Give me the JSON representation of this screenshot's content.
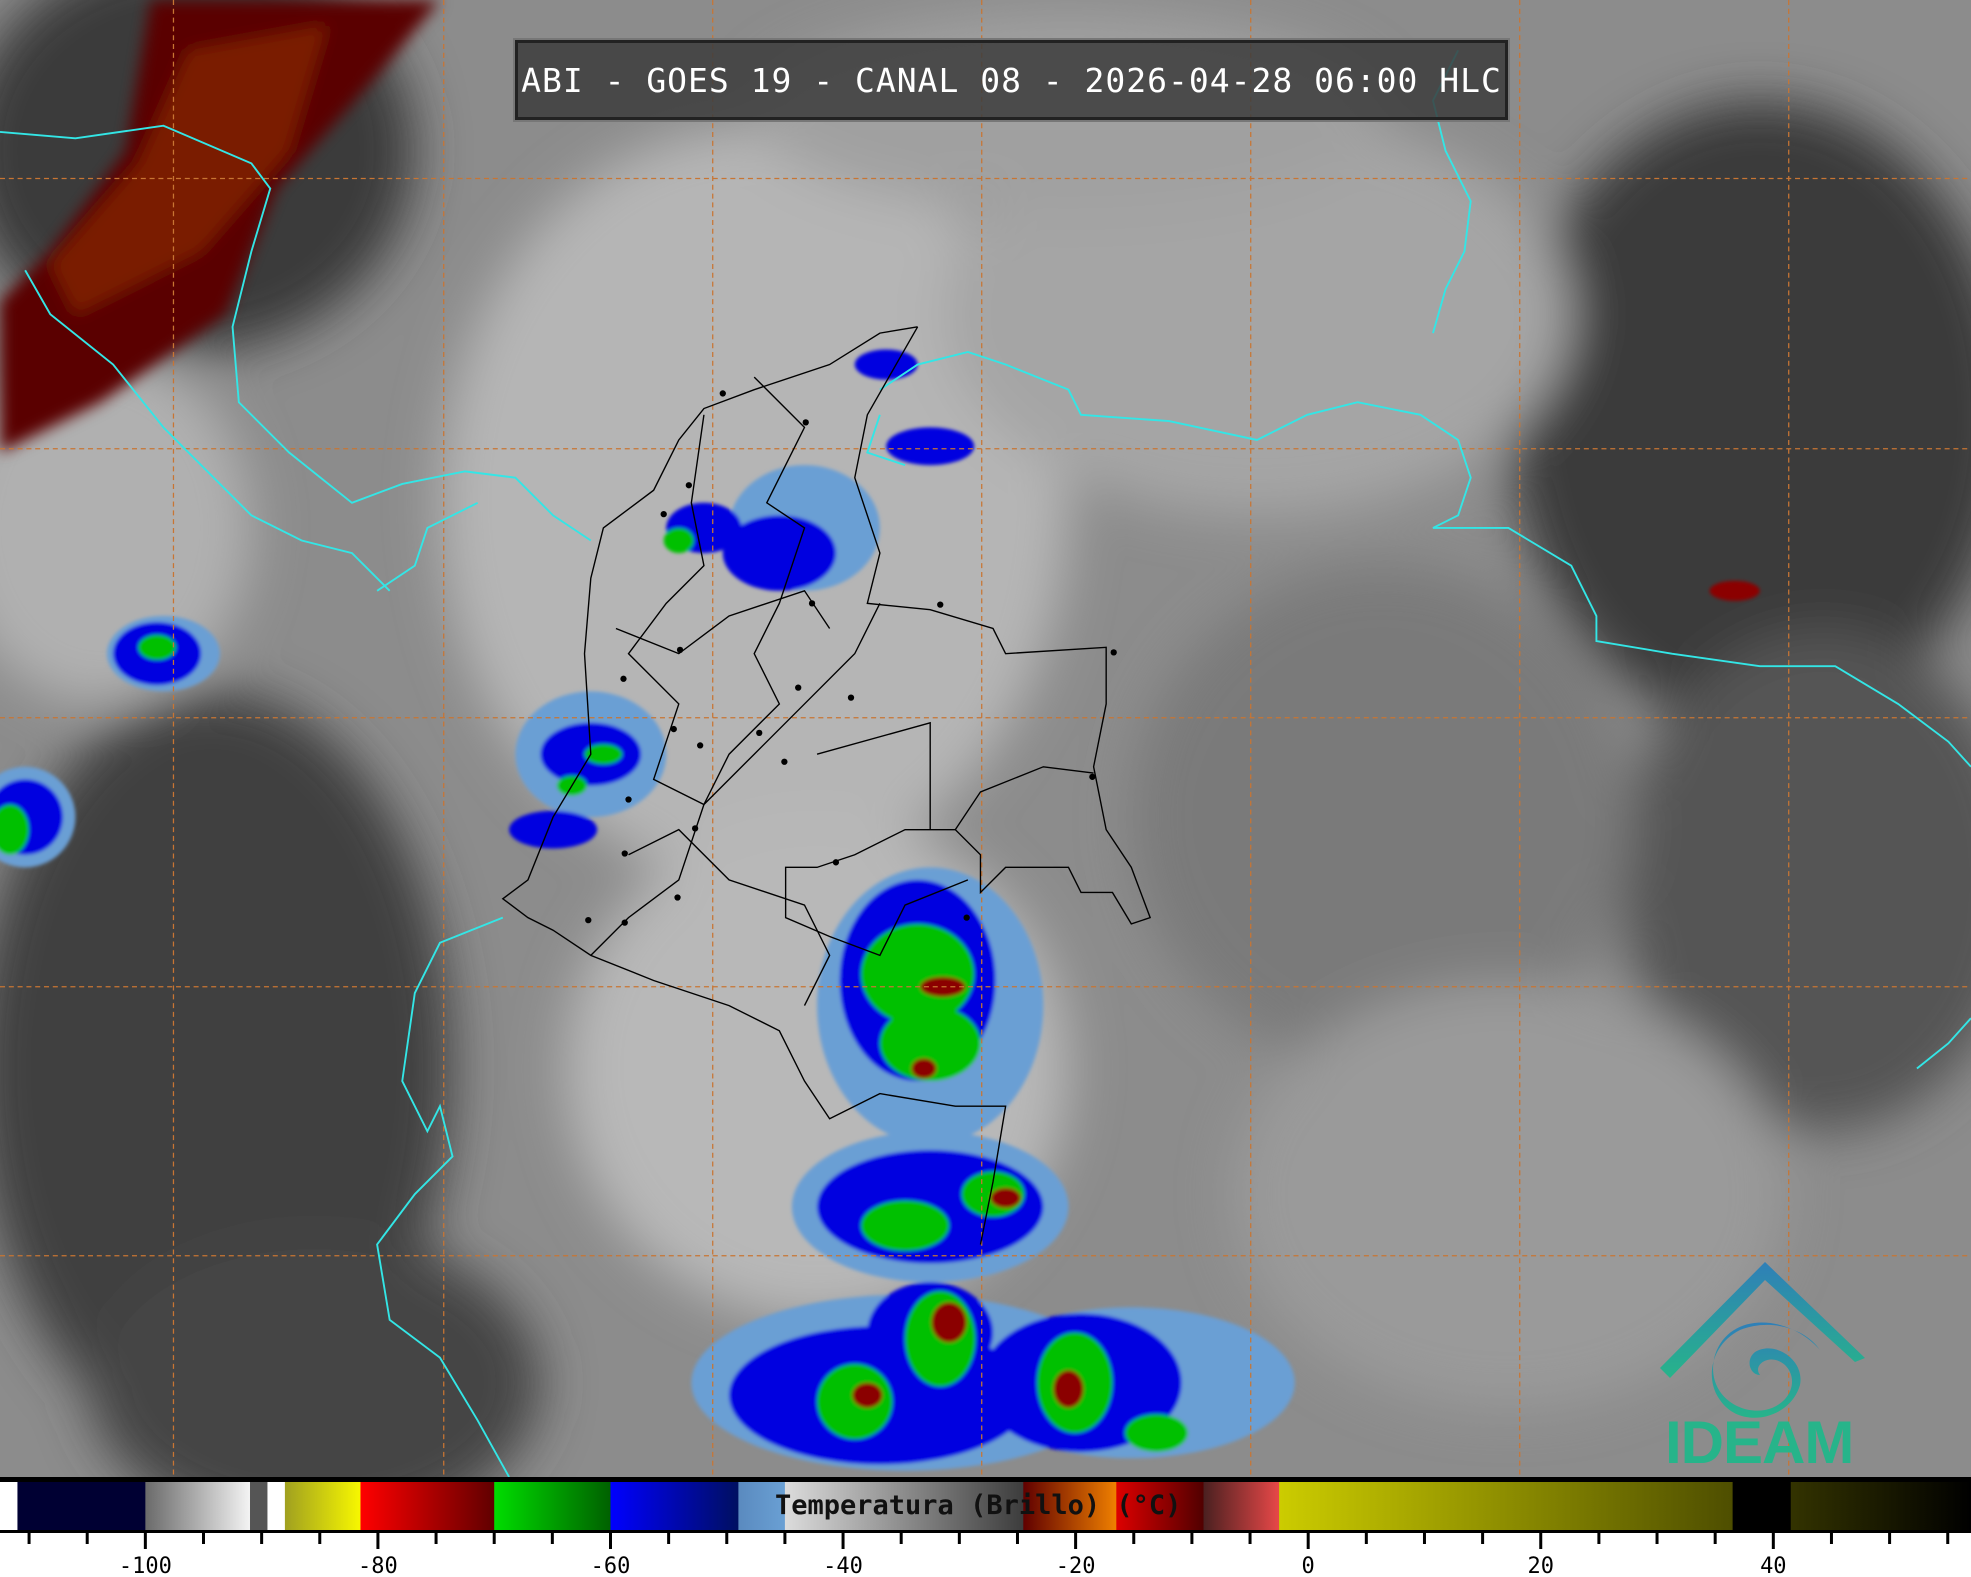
{
  "title": "ABI - GOES 19 - CANAL 08 - 2026-04-28 06:00 HLC",
  "logo": {
    "text": "IDEAM",
    "color_top": "#2f7fb8",
    "color_bottom": "#27b48a"
  },
  "map": {
    "grid_color": "#c87533",
    "coastline_color": "#33e6e6",
    "border_color": "#000000"
  },
  "colorbar": {
    "label": "Temperatura (Brillo) (°C)",
    "range": [
      -112.5,
      57
    ],
    "tick_step": 5,
    "tick_labels": [
      "-100",
      "-80",
      "-60",
      "-40",
      "-20",
      "0",
      "20",
      "40"
    ],
    "tick_values": [
      -100,
      -80,
      -60,
      -40,
      -20,
      0,
      20,
      40
    ],
    "segments": [
      {
        "from": -112.5,
        "to": -111,
        "c1": "#ffffff",
        "c2": "#ffffff"
      },
      {
        "from": -111,
        "to": -100,
        "c1": "#000033",
        "c2": "#000033"
      },
      {
        "from": -100,
        "to": -91,
        "c1": "#6a6a6a",
        "c2": "#f4f4f4"
      },
      {
        "from": -91,
        "to": -89.5,
        "c1": "#555555",
        "c2": "#555555"
      },
      {
        "from": -89.5,
        "to": -88,
        "c1": "#ffffff",
        "c2": "#ffffff"
      },
      {
        "from": -88,
        "to": -81.5,
        "c1": "#a0a020",
        "c2": "#f8f800"
      },
      {
        "from": -81.5,
        "to": -70,
        "c1": "#ff0000",
        "c2": "#600000"
      },
      {
        "from": -70,
        "to": -60,
        "c1": "#00dd00",
        "c2": "#006000"
      },
      {
        "from": -60,
        "to": -49,
        "c1": "#0000ff",
        "c2": "#001060"
      },
      {
        "from": -49,
        "to": -45,
        "c1": "#5a8abf",
        "c2": "#6aa0d4"
      },
      {
        "from": -45,
        "to": -24.5,
        "c1": "#dcdcdc",
        "c2": "#3c3c3c"
      },
      {
        "from": -24.5,
        "to": -16.5,
        "c1": "#600000",
        "c2": "#f08000"
      },
      {
        "from": -16.5,
        "to": -9,
        "c1": "#dd0000",
        "c2": "#500000"
      },
      {
        "from": -9,
        "to": -2.5,
        "c1": "#4a2020",
        "c2": "#e84848"
      },
      {
        "from": -2.5,
        "to": 36.5,
        "c1": "#cccc00",
        "c2": "#4e4e00"
      },
      {
        "from": 36.5,
        "to": 41.5,
        "c1": "#000000",
        "c2": "#000000"
      },
      {
        "from": 41.5,
        "to": 57,
        "c1": "#333300",
        "c2": "#000000"
      }
    ]
  }
}
